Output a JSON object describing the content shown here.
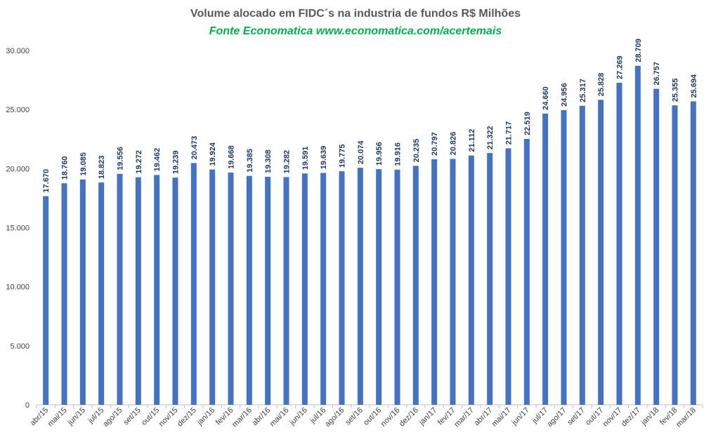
{
  "chart_data": {
    "type": "bar",
    "title": "Volume alocado em FIDC´s na industria de fundos R$ Milhões",
    "subtitle": "Fonte Economatica www.economatica.com/acertemais",
    "categories": [
      "abr/15",
      "mai/15",
      "jun/15",
      "jul/15",
      "ago/15",
      "set/15",
      "out/15",
      "nov/15",
      "dez/15",
      "jan/16",
      "fev/16",
      "mar/16",
      "abr/16",
      "mai/16",
      "jun/16",
      "jul/16",
      "ago/16",
      "set/16",
      "out/16",
      "nov/16",
      "dez/16",
      "jan/17",
      "fev/17",
      "mar/17",
      "abr/17",
      "mai/17",
      "jun/17",
      "jul/17",
      "ago/17",
      "set/17",
      "out/17",
      "nov/17",
      "dez/17",
      "jan/18",
      "fev/18",
      "mar/18"
    ],
    "values": [
      17670,
      18760,
      19085,
      18823,
      19556,
      19272,
      19462,
      19239,
      20473,
      19924,
      19668,
      19385,
      19308,
      19282,
      19591,
      19639,
      19775,
      20074,
      19956,
      19916,
      20235,
      20797,
      20826,
      21112,
      21322,
      21717,
      22519,
      24660,
      24956,
      25317,
      25828,
      27269,
      28709,
      26757,
      25355,
      25694
    ],
    "value_labels": [
      "17.670",
      "18.760",
      "19.085",
      "18.823",
      "19.556",
      "19.272",
      "19.462",
      "19.239",
      "20.473",
      "19.924",
      "19.668",
      "19.385",
      "19.308",
      "19.282",
      "19.591",
      "19.639",
      "19.775",
      "20.074",
      "19.956",
      "19.916",
      "20.235",
      "20.797",
      "20.826",
      "21.112",
      "21.322",
      "21.717",
      "22.519",
      "24.660",
      "24.956",
      "25.317",
      "25.828",
      "27.269",
      "28.709",
      "26.757",
      "25.355",
      "25.694"
    ],
    "ylim": [
      0,
      30000
    ],
    "yticks": [
      0,
      5000,
      10000,
      15000,
      20000,
      25000,
      30000
    ],
    "ytick_labels": [
      "0",
      "5.000",
      "10.000",
      "15.000",
      "20.000",
      "25.000",
      "30.000"
    ],
    "xlabel": "",
    "ylabel": "",
    "bar_color": "#4472c4",
    "grid": false,
    "legend": "none"
  }
}
